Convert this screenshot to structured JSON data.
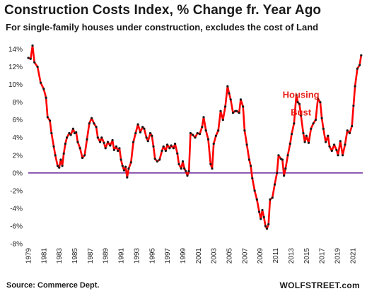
{
  "title": "Construction  Costs Index, % Change fr. Year Ago",
  "subtitle": "For single-family houses under construction, excludes the cost of Land",
  "source": "Source: Commerce Dept.",
  "brand": "WOLFSTREET.com",
  "chart_data": {
    "type": "line",
    "title": "Construction  Costs Index, % Change fr. Year Ago",
    "subtitle": "For single-family houses under construction, excludes the cost of Land",
    "xlabel": "",
    "ylabel": "",
    "xlim": [
      1979,
      2022.3
    ],
    "ylim": [
      -8,
      15
    ],
    "y_ticks": [
      -8,
      -6,
      -4,
      -2,
      0,
      2,
      4,
      6,
      8,
      10,
      12,
      14
    ],
    "y_tick_labels": [
      "-8%",
      "-6%",
      "-4%",
      "-2%",
      "0%",
      "2%",
      "4%",
      "6%",
      "8%",
      "10%",
      "12%",
      "14%"
    ],
    "x_ticks": [
      1979,
      1981,
      1983,
      1985,
      1987,
      1989,
      1991,
      1993,
      1995,
      1997,
      1999,
      2001,
      2003,
      2005,
      2007,
      2009,
      2011,
      2013,
      2015,
      2017,
      2019,
      2021
    ],
    "x_tick_labels": [
      "1979",
      "1981",
      "1983",
      "1985",
      "1987",
      "1989",
      "1991",
      "1993",
      "1995",
      "1997",
      "1999",
      "2001",
      "2003",
      "2005",
      "2007",
      "2009",
      "2011",
      "2013",
      "2015",
      "2017",
      "2019",
      "2021"
    ],
    "grid": false,
    "zero_line_color": "#7030a0",
    "line_color": "#ff0000",
    "marker_color": "#1a1a1a",
    "annotations": [
      {
        "text": "Housing",
        "x": 2014.3,
        "y": 8.5
      },
      {
        "text": "Bust",
        "x": 2014.3,
        "y": 6.5
      }
    ],
    "series": [
      {
        "points": [
          [
            1979.0,
            13.0
          ],
          [
            1979.3,
            12.9
          ],
          [
            1979.55,
            14.4
          ],
          [
            1979.8,
            12.5
          ],
          [
            1980.2,
            12.0
          ],
          [
            1980.6,
            10.2
          ],
          [
            1981.0,
            9.5
          ],
          [
            1981.3,
            8.5
          ],
          [
            1981.5,
            6.3
          ],
          [
            1981.8,
            5.9
          ],
          [
            1982.0,
            4.5
          ],
          [
            1982.3,
            3.0
          ],
          [
            1982.5,
            2.0
          ],
          [
            1982.8,
            0.8
          ],
          [
            1983.0,
            0.6
          ],
          [
            1983.2,
            1.5
          ],
          [
            1983.4,
            0.8
          ],
          [
            1983.6,
            2.2
          ],
          [
            1983.8,
            3.3
          ],
          [
            1984.0,
            4.0
          ],
          [
            1984.3,
            4.5
          ],
          [
            1984.5,
            4.3
          ],
          [
            1984.8,
            5.0
          ],
          [
            1985.0,
            4.5
          ],
          [
            1985.2,
            4.6
          ],
          [
            1985.4,
            3.5
          ],
          [
            1985.7,
            2.8
          ],
          [
            1986.0,
            1.7
          ],
          [
            1986.3,
            2.0
          ],
          [
            1986.6,
            3.8
          ],
          [
            1986.9,
            5.6
          ],
          [
            1987.2,
            6.2
          ],
          [
            1987.5,
            5.6
          ],
          [
            1987.8,
            5.2
          ],
          [
            1988.0,
            4.0
          ],
          [
            1988.3,
            3.5
          ],
          [
            1988.5,
            4.0
          ],
          [
            1988.8,
            3.4
          ],
          [
            1989.0,
            2.8
          ],
          [
            1989.3,
            3.5
          ],
          [
            1989.6,
            3.1
          ],
          [
            1989.9,
            3.7
          ],
          [
            1990.1,
            2.6
          ],
          [
            1990.4,
            3.0
          ],
          [
            1990.6,
            2.5
          ],
          [
            1990.8,
            2.8
          ],
          [
            1991.0,
            1.5
          ],
          [
            1991.2,
            0.8
          ],
          [
            1991.4,
            0.3
          ],
          [
            1991.6,
            0.7
          ],
          [
            1991.8,
            -0.5
          ],
          [
            1992.0,
            0.5
          ],
          [
            1992.3,
            1.2
          ],
          [
            1992.6,
            3.5
          ],
          [
            1992.9,
            4.5
          ],
          [
            1993.2,
            5.5
          ],
          [
            1993.5,
            4.6
          ],
          [
            1993.8,
            5.2
          ],
          [
            1994.0,
            5.0
          ],
          [
            1994.3,
            4.0
          ],
          [
            1994.5,
            3.6
          ],
          [
            1994.8,
            4.5
          ],
          [
            1995.0,
            4.2
          ],
          [
            1995.2,
            3.0
          ],
          [
            1995.4,
            1.6
          ],
          [
            1995.7,
            1.3
          ],
          [
            1996.0,
            1.5
          ],
          [
            1996.3,
            2.5
          ],
          [
            1996.5,
            3.0
          ],
          [
            1996.8,
            2.5
          ],
          [
            1997.0,
            3.2
          ],
          [
            1997.3,
            2.8
          ],
          [
            1997.5,
            3.1
          ],
          [
            1997.8,
            2.8
          ],
          [
            1998.0,
            3.3
          ],
          [
            1998.3,
            2.2
          ],
          [
            1998.5,
            1.0
          ],
          [
            1998.8,
            0.5
          ],
          [
            1999.0,
            1.3
          ],
          [
            1999.2,
            0.5
          ],
          [
            1999.4,
            0.2
          ],
          [
            1999.6,
            -0.3
          ],
          [
            1999.8,
            0.2
          ],
          [
            2000.0,
            4.5
          ],
          [
            2000.3,
            4.3
          ],
          [
            2000.6,
            4.0
          ],
          [
            2000.9,
            4.5
          ],
          [
            2001.2,
            4.4
          ],
          [
            2001.5,
            5.2
          ],
          [
            2001.7,
            6.3
          ],
          [
            2002.0,
            4.8
          ],
          [
            2002.3,
            3.8
          ],
          [
            2002.6,
            1.0
          ],
          [
            2002.8,
            0.5
          ],
          [
            2003.0,
            3.3
          ],
          [
            2003.3,
            4.2
          ],
          [
            2003.6,
            4.8
          ],
          [
            2003.9,
            7.0
          ],
          [
            2004.2,
            6.0
          ],
          [
            2004.5,
            7.5
          ],
          [
            2004.8,
            9.8
          ],
          [
            2005.0,
            9.0
          ],
          [
            2005.2,
            8.3
          ],
          [
            2005.5,
            6.8
          ],
          [
            2005.8,
            7.0
          ],
          [
            2006.0,
            7.0
          ],
          [
            2006.3,
            6.8
          ],
          [
            2006.5,
            8.3
          ],
          [
            2006.8,
            7.5
          ],
          [
            2007.0,
            4.8
          ],
          [
            2007.3,
            3.2
          ],
          [
            2007.6,
            1.5
          ],
          [
            2007.8,
            0.8
          ],
          [
            2008.0,
            -0.6
          ],
          [
            2008.3,
            -2.0
          ],
          [
            2008.6,
            -3.0
          ],
          [
            2008.9,
            -4.4
          ],
          [
            2009.1,
            -5.2
          ],
          [
            2009.3,
            -4.2
          ],
          [
            2009.5,
            -5.0
          ],
          [
            2009.7,
            -6.0
          ],
          [
            2009.9,
            -6.3
          ],
          [
            2010.1,
            -5.8
          ],
          [
            2010.3,
            -3.0
          ],
          [
            2010.6,
            -2.8
          ],
          [
            2010.9,
            -1.3
          ],
          [
            2011.2,
            0.0
          ],
          [
            2011.4,
            2.0
          ],
          [
            2011.7,
            1.6
          ],
          [
            2011.9,
            1.5
          ],
          [
            2012.1,
            -0.3
          ],
          [
            2012.3,
            0.5
          ],
          [
            2012.6,
            2.0
          ],
          [
            2012.9,
            3.3
          ],
          [
            2013.1,
            4.4
          ],
          [
            2013.4,
            5.6
          ],
          [
            2013.7,
            8.8
          ],
          [
            2013.9,
            8.0
          ],
          [
            2014.1,
            7.8
          ],
          [
            2014.3,
            6.5
          ],
          [
            2014.6,
            4.5
          ],
          [
            2014.8,
            3.5
          ],
          [
            2015.0,
            4.2
          ],
          [
            2015.3,
            3.4
          ],
          [
            2015.6,
            5.0
          ],
          [
            2015.9,
            5.6
          ],
          [
            2016.2,
            6.0
          ],
          [
            2016.5,
            8.4
          ],
          [
            2016.8,
            8.0
          ],
          [
            2017.0,
            6.2
          ],
          [
            2017.2,
            5.0
          ],
          [
            2017.5,
            3.5
          ],
          [
            2017.8,
            4.2
          ],
          [
            2018.0,
            3.0
          ],
          [
            2018.3,
            2.5
          ],
          [
            2018.6,
            3.2
          ],
          [
            2018.9,
            2.6
          ],
          [
            2019.1,
            2.0
          ],
          [
            2019.4,
            3.6
          ],
          [
            2019.7,
            2.0
          ],
          [
            2020.0,
            3.2
          ],
          [
            2020.3,
            4.8
          ],
          [
            2020.6,
            4.5
          ],
          [
            2020.9,
            5.3
          ],
          [
            2021.1,
            7.6
          ],
          [
            2021.3,
            9.8
          ],
          [
            2021.6,
            11.8
          ],
          [
            2021.9,
            12.2
          ],
          [
            2022.1,
            13.3
          ]
        ]
      }
    ]
  }
}
